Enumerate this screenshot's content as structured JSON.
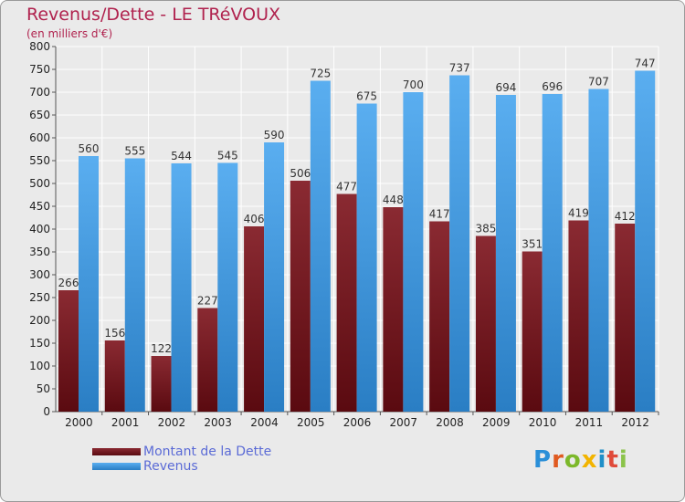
{
  "header": {
    "title": "Revenus/Dette - LE TRéVOUX",
    "subtitle": "(en milliers d'€)"
  },
  "colors": {
    "dette": "#7a1a22",
    "revenus": "#3a92d8",
    "grid": "#ffffff",
    "plot_bg": "#eaeaea",
    "label_text": "#333333",
    "tick_text": "#222222"
  },
  "chart_data": {
    "type": "bar",
    "title": "Revenus/Dette - LE TRéVOUX",
    "subtitle": "(en milliers d'€)",
    "xlabel": "",
    "ylabel": "",
    "ylim": [
      0,
      800
    ],
    "yticks": [
      0,
      50,
      100,
      150,
      200,
      250,
      300,
      350,
      400,
      450,
      500,
      550,
      600,
      650,
      700,
      750,
      800
    ],
    "grid": true,
    "legend_position": "bottom-left",
    "categories": [
      "2000",
      "2001",
      "2002",
      "2003",
      "2004",
      "2005",
      "2006",
      "2007",
      "2008",
      "2009",
      "2010",
      "2011",
      "2012"
    ],
    "series": [
      {
        "name": "Montant de la Dette",
        "values": [
          266,
          156,
          122,
          227,
          406,
          506,
          477,
          448,
          417,
          385,
          351,
          419,
          412
        ]
      },
      {
        "name": "Revenus",
        "values": [
          560,
          555,
          544,
          545,
          590,
          725,
          675,
          700,
          737,
          694,
          696,
          707,
          747
        ]
      }
    ]
  },
  "legend": {
    "items": [
      {
        "label": "Montant de la Dette",
        "color": "#7a1a22"
      },
      {
        "label": "Revenus",
        "color": "#3a92d8"
      }
    ]
  },
  "brand": {
    "letters": [
      "P",
      "r",
      "o",
      "x",
      "i",
      "t",
      "i"
    ],
    "colors": [
      "#2a8fd8",
      "#e05a20",
      "#7cb82a",
      "#f2b400",
      "#1f8fc8",
      "#e04a3a",
      "#8bc34a"
    ]
  }
}
